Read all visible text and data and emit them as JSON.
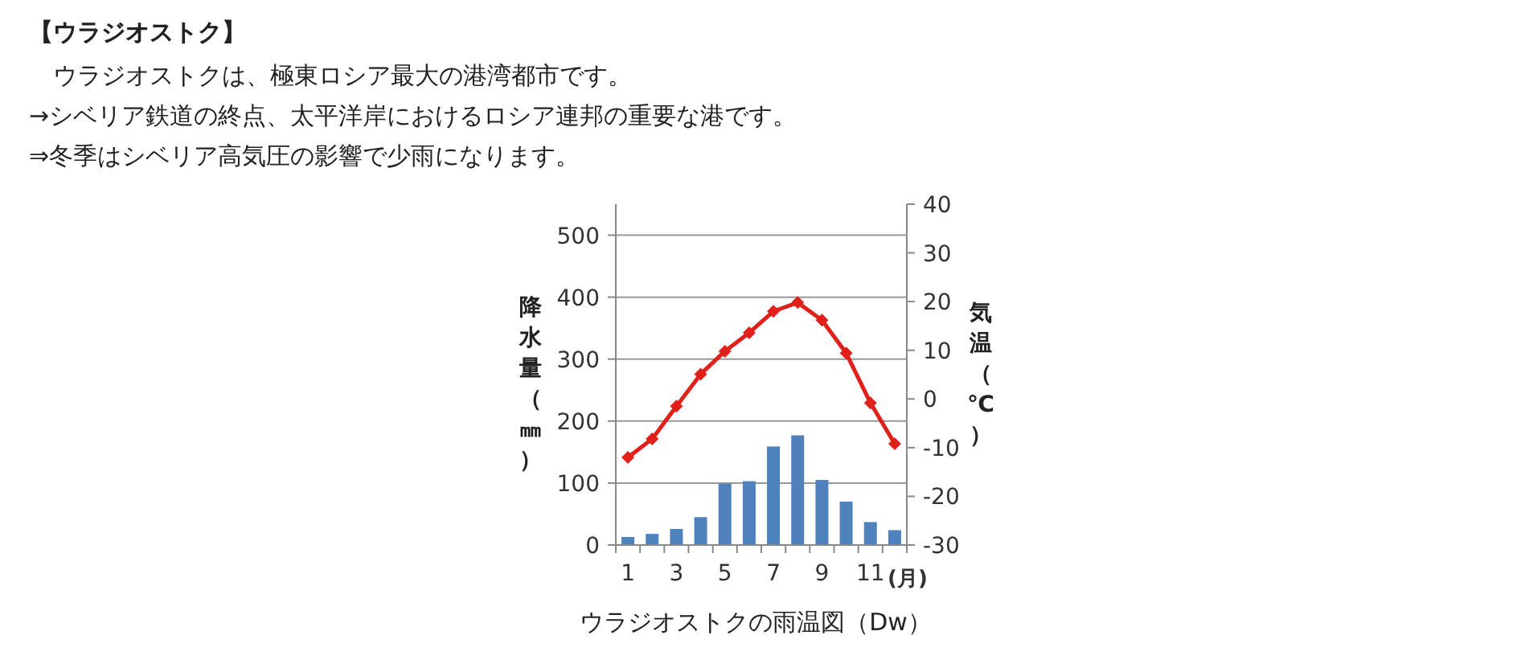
{
  "chart_data": {
    "type": "bar",
    "title": "【ウラジオストク】",
    "annotations": [
      "　ウラジオストクは、極東ロシア最大の港湾都市です。",
      "→シベリア鉄道の終点、太平洋岸におけるロシア連邦の重要な港です。",
      "⇒冬季はシベリア高気圧の影響で少雨になります。",
      "ウラジオストクの雨温図（Dw）"
    ],
    "categories": [
      "1",
      null,
      "3",
      null,
      "5",
      null,
      "7",
      null,
      "9",
      null,
      "11",
      null
    ],
    "xlabel": "(月)",
    "ylabel": "降水量（㎜）",
    "y2label": "気温（℃）",
    "ylim": [
      0,
      550
    ],
    "yticks": [
      0,
      100,
      200,
      300,
      400,
      500
    ],
    "y2lim": [
      -30,
      40
    ],
    "y2ticks": [
      -30,
      -20,
      -10,
      0,
      10,
      20,
      30,
      40
    ],
    "grid": "y",
    "series": [
      {
        "color": "#4f81bd",
        "values": [
          13,
          18,
          26,
          45,
          99,
          103,
          159,
          177,
          105,
          70,
          37,
          24
        ]
      },
      {
        "type": "line",
        "axis": "y2",
        "color": "#e0201b",
        "marker": "diamond",
        "line_style": "solid",
        "values": [
          -12,
          -8.2,
          -1.5,
          5.1,
          9.8,
          13.6,
          18.0,
          19.8,
          16.2,
          9.4,
          -0.8,
          -9.2
        ]
      }
    ]
  }
}
